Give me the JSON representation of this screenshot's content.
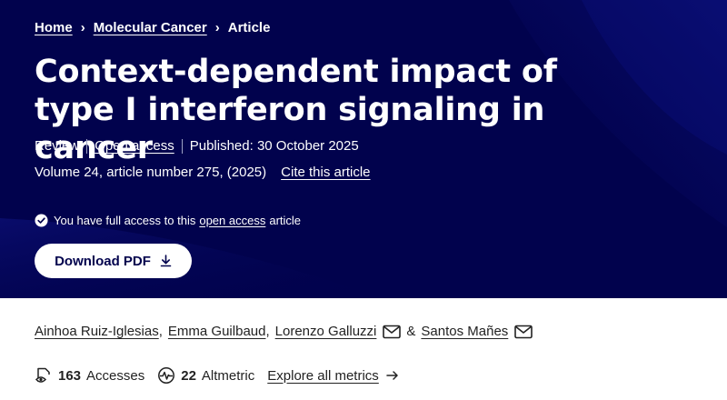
{
  "breadcrumb": {
    "home": "Home",
    "journal": "Molecular Cancer",
    "current": "Article",
    "separator": "›"
  },
  "article": {
    "title": "Context-dependent impact of type I interferon signaling in cancer",
    "type": "Review",
    "open_access": "Open access",
    "published": "Published: 30 October 2025",
    "volume": "Volume 24, article number 275, (2025)",
    "cite": "Cite this article"
  },
  "access": {
    "prefix": "You have full access to this",
    "link": "open access",
    "suffix": "article"
  },
  "download": {
    "label": "Download PDF"
  },
  "authors": [
    {
      "name": "Ainhoa Ruiz-Iglesias",
      "sep": ","
    },
    {
      "name": "Emma Guilbaud",
      "sep": ","
    },
    {
      "name": "Lorenzo Galluzzi"
    },
    {
      "name": "Santos Mañes"
    }
  ],
  "authors_amp": "&",
  "metrics": {
    "accesses_count": "163",
    "accesses_label": "Accesses",
    "altmetric_count": "22",
    "altmetric_label": "Altmetric",
    "explore": "Explore all metrics"
  },
  "colors": {
    "hero_bg": "#01024d",
    "text_dark": "#222222"
  }
}
